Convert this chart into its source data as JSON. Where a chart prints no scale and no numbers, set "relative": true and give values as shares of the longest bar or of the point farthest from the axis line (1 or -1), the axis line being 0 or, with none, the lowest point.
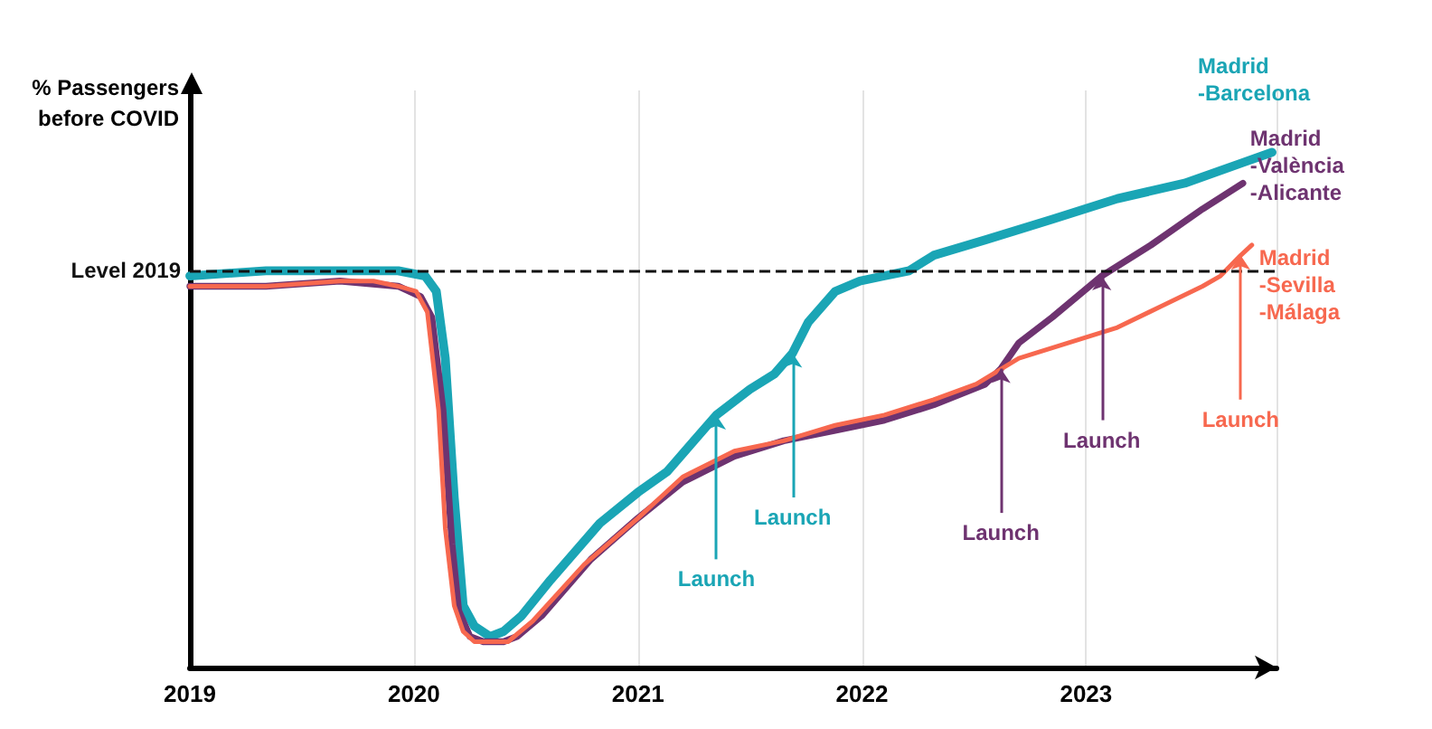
{
  "chart_data": {
    "type": "line",
    "relative": true,
    "ylabel": "% Passengers before COVID",
    "xlim": [
      2019,
      2023.85
    ],
    "xticks": [
      2019,
      2020,
      2021,
      2022,
      2023
    ],
    "grid": "x",
    "legend": "right",
    "marker": "none",
    "line_style": "solid",
    "ref_lines": [
      {
        "axis": "y",
        "value": 0.77,
        "label": "Level 2019",
        "color": "#111111",
        "line_style": "dashed"
      }
    ],
    "annotations": [
      {
        "text": "Launch",
        "x": 2021.35,
        "y": 0.49
      },
      {
        "text": "Launch",
        "x": 2021.69,
        "y": 0.61
      },
      {
        "text": "Launch",
        "x": 2022.62,
        "y": 0.58
      },
      {
        "text": "Launch",
        "x": 2023.07,
        "y": 0.76
      },
      {
        "text": "Launch",
        "x": 2023.69,
        "y": 0.8
      }
    ],
    "series": [
      {
        "name": "Madrid -Barcelona",
        "color": "#1aa5b5",
        "x": [
          2019.0,
          2019.34,
          2019.56,
          2019.75,
          2019.93,
          2020.05,
          2020.1,
          2020.14,
          2020.18,
          2020.22,
          2020.27,
          2020.34,
          2020.4,
          2020.48,
          2020.61,
          2020.83,
          2021.0,
          2021.13,
          2021.23,
          2021.35,
          2021.5,
          2021.61,
          2021.69,
          2021.76,
          2021.88,
          2021.99,
          2022.1,
          2022.21,
          2022.32,
          2022.55,
          2022.85,
          2023.14,
          2023.44,
          2023.7,
          2023.83
        ],
        "values": [
          0.76,
          0.77,
          0.77,
          0.77,
          0.77,
          0.76,
          0.73,
          0.6,
          0.33,
          0.12,
          0.08,
          0.06,
          0.07,
          0.1,
          0.17,
          0.28,
          0.34,
          0.38,
          0.43,
          0.49,
          0.54,
          0.57,
          0.61,
          0.67,
          0.73,
          0.75,
          0.76,
          0.77,
          0.8,
          0.83,
          0.87,
          0.91,
          0.94,
          0.98,
          1.0
        ]
      },
      {
        "name": "Madrid -València -Alicante",
        "color": "#6e3370",
        "x": [
          2019.0,
          2019.34,
          2019.67,
          2019.93,
          2020.03,
          2020.08,
          2020.13,
          2020.17,
          2020.2,
          2020.25,
          2020.31,
          2020.4,
          2020.46,
          2020.57,
          2020.79,
          2021.0,
          2021.2,
          2021.43,
          2021.65,
          2021.88,
          2022.1,
          2022.32,
          2022.55,
          2022.62,
          2022.7,
          2022.85,
          2023.07,
          2023.29,
          2023.52,
          2023.7
        ],
        "values": [
          0.74,
          0.74,
          0.75,
          0.74,
          0.72,
          0.68,
          0.5,
          0.24,
          0.11,
          0.06,
          0.05,
          0.05,
          0.06,
          0.1,
          0.21,
          0.29,
          0.36,
          0.41,
          0.44,
          0.46,
          0.48,
          0.51,
          0.55,
          0.58,
          0.63,
          0.68,
          0.76,
          0.82,
          0.89,
          0.94
        ]
      },
      {
        "name": "Madrid -Sevilla -Málaga",
        "color": "#f7684f",
        "x": [
          2019.0,
          2019.34,
          2019.67,
          2019.82,
          2019.93,
          2020.01,
          2020.06,
          2020.11,
          2020.14,
          2020.18,
          2020.22,
          2020.27,
          2020.34,
          2020.42,
          2020.53,
          2020.76,
          2021.0,
          2021.2,
          2021.43,
          2021.65,
          2021.88,
          2022.1,
          2022.32,
          2022.51,
          2022.7,
          2022.92,
          2023.14,
          2023.33,
          2023.52,
          2023.6,
          2023.69,
          2023.74
        ],
        "values": [
          0.74,
          0.74,
          0.75,
          0.75,
          0.74,
          0.73,
          0.69,
          0.5,
          0.27,
          0.12,
          0.07,
          0.05,
          0.05,
          0.05,
          0.09,
          0.2,
          0.29,
          0.37,
          0.42,
          0.44,
          0.47,
          0.49,
          0.52,
          0.55,
          0.6,
          0.63,
          0.66,
          0.7,
          0.74,
          0.76,
          0.8,
          0.82
        ]
      }
    ]
  }
}
